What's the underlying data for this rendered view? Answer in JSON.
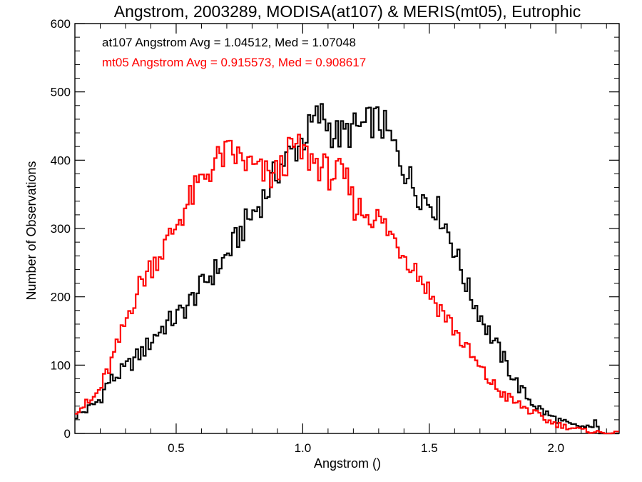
{
  "chart_data": {
    "type": "histogram",
    "title": "Angstrom, 2003289, MODISA(at107) & MERIS(mt05), Eutrophic",
    "xlabel": "Angstrom ()",
    "ylabel": "Number of Observations",
    "xlim": [
      0.1,
      2.25
    ],
    "ylim": [
      0,
      600
    ],
    "xticks": [
      0.5,
      1.0,
      1.5,
      2.0
    ],
    "xtick_labels": [
      "0.5",
      "1.0",
      "1.5",
      "2.0"
    ],
    "xminor": [
      0.1,
      0.2,
      0.3,
      0.4,
      0.6,
      0.7,
      0.8,
      0.9,
      1.1,
      1.2,
      1.3,
      1.4,
      1.6,
      1.7,
      1.8,
      1.9,
      2.1,
      2.2
    ],
    "yticks": [
      0,
      100,
      200,
      300,
      400,
      500,
      600
    ],
    "ytick_labels": [
      "0",
      "100",
      "200",
      "300",
      "400",
      "500",
      "600"
    ],
    "yminor_step": 20,
    "grid": false,
    "legend_position": "top-left",
    "bin_width": 0.01,
    "series": [
      {
        "label": "at107 Angstrom Avg = 1.04512, Med = 1.07048",
        "color": "#000000",
        "points": [
          [
            0.1,
            25
          ],
          [
            0.15,
            35
          ],
          [
            0.2,
            50
          ],
          [
            0.23,
            75
          ],
          [
            0.26,
            82
          ],
          [
            0.3,
            95
          ],
          [
            0.34,
            110
          ],
          [
            0.38,
            125
          ],
          [
            0.42,
            145
          ],
          [
            0.46,
            160
          ],
          [
            0.5,
            170
          ],
          [
            0.54,
            185
          ],
          [
            0.58,
            205
          ],
          [
            0.62,
            225
          ],
          [
            0.66,
            240
          ],
          [
            0.7,
            260
          ],
          [
            0.74,
            285
          ],
          [
            0.78,
            310
          ],
          [
            0.82,
            330
          ],
          [
            0.86,
            355
          ],
          [
            0.9,
            385
          ],
          [
            0.94,
            405
          ],
          [
            0.98,
            420
          ],
          [
            1.02,
            440
          ],
          [
            1.05,
            460
          ],
          [
            1.08,
            465
          ],
          [
            1.12,
            440
          ],
          [
            1.15,
            435
          ],
          [
            1.2,
            445
          ],
          [
            1.25,
            450
          ],
          [
            1.28,
            460
          ],
          [
            1.32,
            450
          ],
          [
            1.36,
            420
          ],
          [
            1.4,
            390
          ],
          [
            1.44,
            360
          ],
          [
            1.48,
            345
          ],
          [
            1.52,
            335
          ],
          [
            1.56,
            310
          ],
          [
            1.6,
            270
          ],
          [
            1.63,
            235
          ],
          [
            1.66,
            205
          ],
          [
            1.7,
            175
          ],
          [
            1.74,
            145
          ],
          [
            1.78,
            118
          ],
          [
            1.82,
            90
          ],
          [
            1.86,
            65
          ],
          [
            1.9,
            48
          ],
          [
            1.94,
            35
          ],
          [
            1.98,
            25
          ],
          [
            2.02,
            18
          ],
          [
            2.06,
            12
          ],
          [
            2.1,
            10
          ],
          [
            2.14,
            8
          ],
          [
            2.155,
            22
          ],
          [
            2.17,
            0
          ]
        ]
      },
      {
        "label": "mt05 Angstrom Avg = 0.915573, Med = 0.908617",
        "color": "#ff0000",
        "points": [
          [
            0.1,
            35
          ],
          [
            0.13,
            40
          ],
          [
            0.16,
            45
          ],
          [
            0.2,
            65
          ],
          [
            0.24,
            100
          ],
          [
            0.28,
            140
          ],
          [
            0.32,
            185
          ],
          [
            0.36,
            220
          ],
          [
            0.4,
            245
          ],
          [
            0.44,
            265
          ],
          [
            0.48,
            290
          ],
          [
            0.52,
            320
          ],
          [
            0.56,
            345
          ],
          [
            0.6,
            370
          ],
          [
            0.64,
            390
          ],
          [
            0.68,
            405
          ],
          [
            0.72,
            410
          ],
          [
            0.76,
            400
          ],
          [
            0.8,
            390
          ],
          [
            0.84,
            380
          ],
          [
            0.88,
            375
          ],
          [
            0.92,
            390
          ],
          [
            0.96,
            420
          ],
          [
            1.0,
            410
          ],
          [
            1.04,
            400
          ],
          [
            1.08,
            390
          ],
          [
            1.1,
            380
          ],
          [
            1.14,
            380
          ],
          [
            1.18,
            365
          ],
          [
            1.2,
            335
          ],
          [
            1.24,
            325
          ],
          [
            1.28,
            320
          ],
          [
            1.32,
            305
          ],
          [
            1.36,
            285
          ],
          [
            1.4,
            265
          ],
          [
            1.44,
            245
          ],
          [
            1.48,
            220
          ],
          [
            1.52,
            195
          ],
          [
            1.56,
            175
          ],
          [
            1.6,
            152
          ],
          [
            1.64,
            128
          ],
          [
            1.68,
            105
          ],
          [
            1.72,
            85
          ],
          [
            1.76,
            68
          ],
          [
            1.8,
            55
          ],
          [
            1.84,
            45
          ],
          [
            1.88,
            37
          ],
          [
            1.92,
            28
          ],
          [
            1.96,
            20
          ],
          [
            2.0,
            14
          ],
          [
            2.04,
            10
          ],
          [
            2.08,
            7
          ],
          [
            2.12,
            4
          ],
          [
            2.16,
            2
          ],
          [
            2.2,
            0
          ],
          [
            2.25,
            0
          ]
        ]
      }
    ]
  }
}
